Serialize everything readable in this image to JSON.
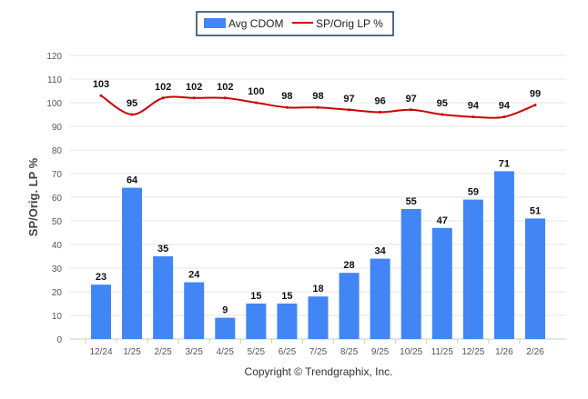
{
  "chart_data": {
    "type": "bar+line",
    "categories": [
      "12/24",
      "1/25",
      "2/25",
      "3/25",
      "4/25",
      "5/25",
      "6/25",
      "7/25",
      "8/25",
      "9/25",
      "10/25",
      "11/25",
      "12/25",
      "1/26",
      "2/26"
    ],
    "series": [
      {
        "name": "Avg CDOM",
        "type": "bar",
        "color": "#4285f4",
        "values": [
          23,
          64,
          35,
          24,
          9,
          15,
          15,
          18,
          28,
          34,
          55,
          47,
          59,
          71,
          51
        ]
      },
      {
        "name": "SP/Orig LP %",
        "type": "line",
        "color": "#cc0000",
        "values": [
          103,
          95,
          102,
          102,
          102,
          100,
          98,
          98,
          97,
          96,
          97,
          95,
          94,
          94,
          99
        ]
      }
    ],
    "ylabel": "SP/Orig. LP %",
    "ylim": [
      0,
      120
    ],
    "yticks": [
      0,
      10,
      20,
      30,
      40,
      50,
      60,
      70,
      80,
      90,
      100,
      110,
      120
    ],
    "grid": true,
    "legend": "top-center"
  },
  "footer": "Copyright © Trendgraphix, Inc."
}
